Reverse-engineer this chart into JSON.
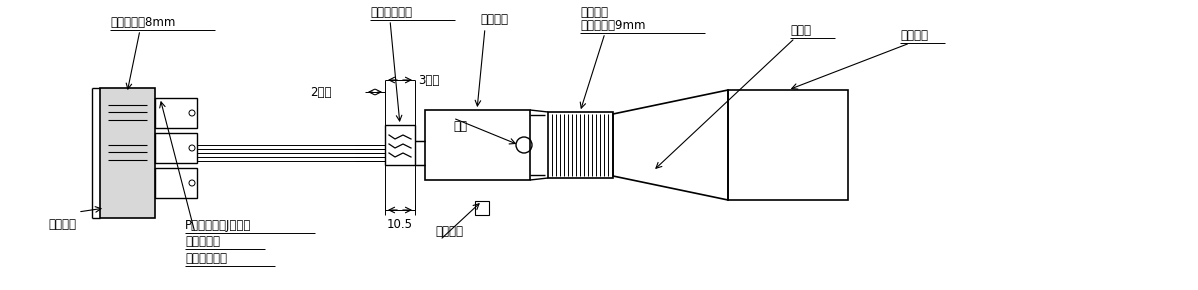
{
  "bg_color": "#ffffff",
  "line_color": "#000000",
  "labels": {
    "supana_8mm": "スパナ間隔8mm",
    "block": "ブロック",
    "p_shell": "Pシェル又はJシェル",
    "washer": "ワッシャー",
    "coupling": "カップリング",
    "clamp": "クランプ金具",
    "tighten": "締付金具",
    "boss": "ボス",
    "imobi": "イモビス",
    "san_ijo": "3以上",
    "ni_teido": "2程度",
    "juten_go": "10.5",
    "supana_kake": "スパナ掛",
    "supana_9mm": "スパナ間隔9mm",
    "hood": "フード",
    "cable": "ケーブル"
  },
  "layout": {
    "fig_w": 11.98,
    "fig_h": 2.9,
    "dpi": 100,
    "xmax": 1198,
    "ymax": 290
  }
}
